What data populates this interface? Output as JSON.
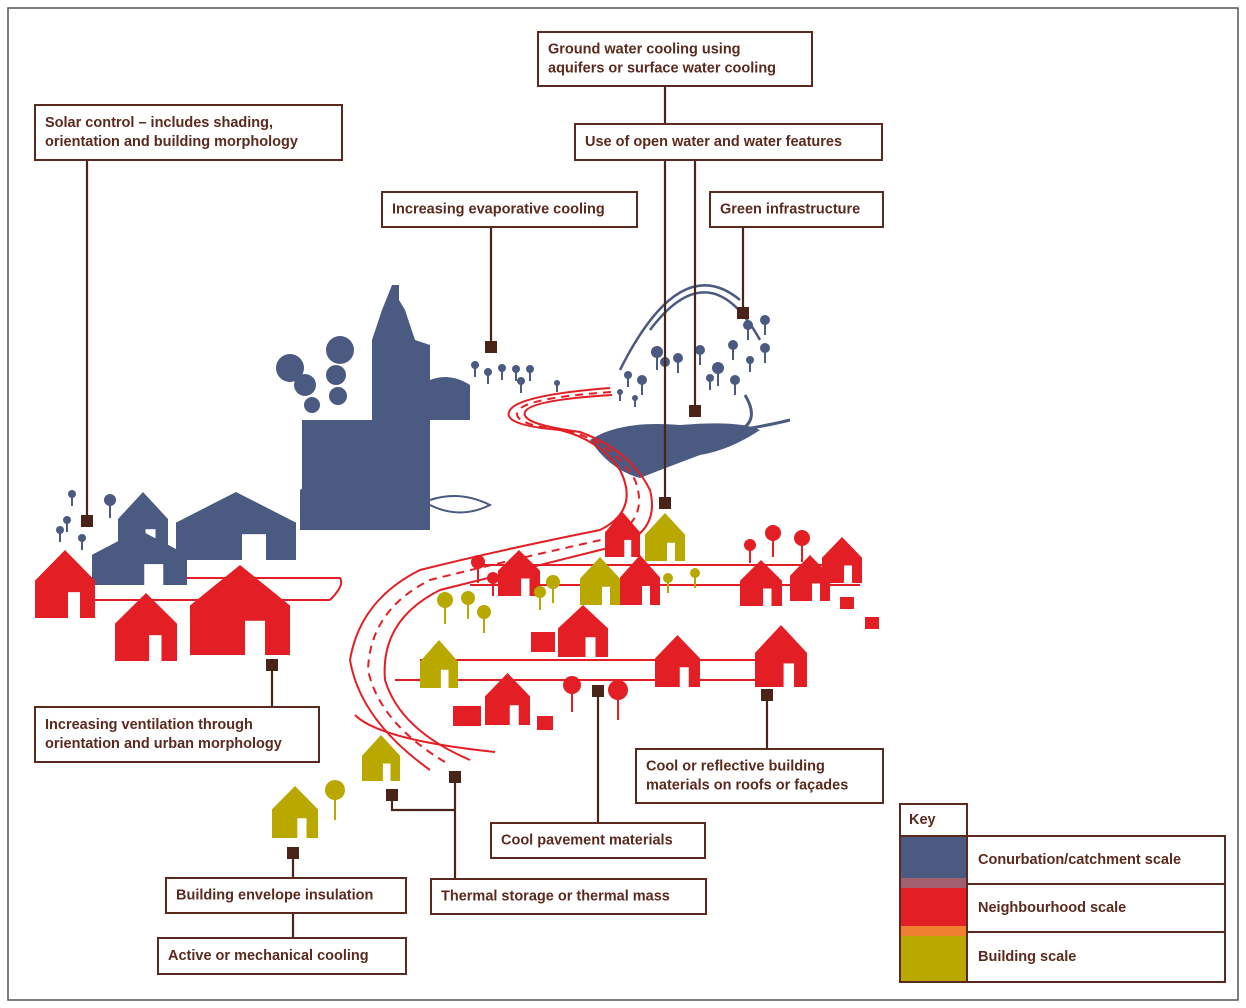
{
  "labels": [
    {
      "lines": [
        "Ground water cooling using",
        "aquifers or surface water cooling"
      ]
    },
    {
      "lines": [
        "Solar control – includes shading,",
        "orientation and building morphology"
      ]
    },
    {
      "lines": [
        "Use of open water and water features"
      ]
    },
    {
      "lines": [
        "Increasing evaporative cooling"
      ]
    },
    {
      "lines": [
        "Green infrastructure"
      ]
    },
    {
      "lines": [
        "Increasing ventilation through",
        "orientation and urban morphology"
      ]
    },
    {
      "lines": [
        "Cool or reflective building",
        "materials on roofs or façades"
      ]
    },
    {
      "lines": [
        "Cool pavement materials"
      ]
    },
    {
      "lines": [
        "Building envelope insulation"
      ]
    },
    {
      "lines": [
        "Thermal storage or thermal mass"
      ]
    },
    {
      "lines": [
        "Active or mechanical cooling"
      ]
    }
  ],
  "key": {
    "title": "Key",
    "items": [
      "Conurbation/catchment scale",
      "Neighbourhood scale",
      "Building scale"
    ]
  }
}
